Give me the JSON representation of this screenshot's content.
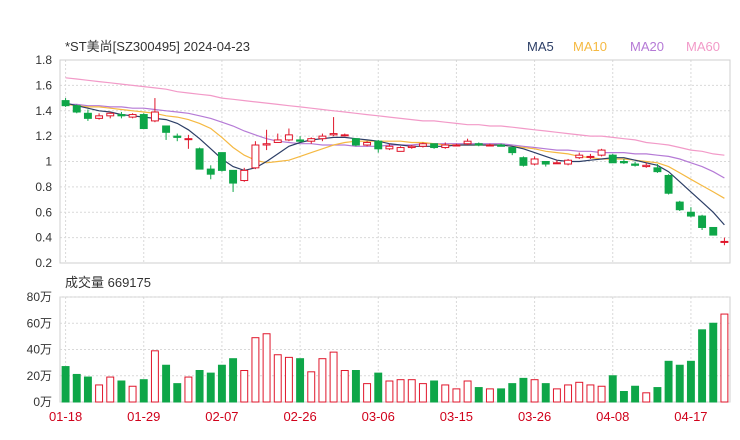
{
  "header": {
    "title": "*ST美尚[SZ300495] 2024-04-23",
    "volume_label": "成交量 669175"
  },
  "legend": [
    {
      "name": "MA5",
      "color": "#2c3e66"
    },
    {
      "name": "MA10",
      "color": "#f5b942"
    },
    {
      "name": "MA20",
      "color": "#b57ad6"
    },
    {
      "name": "MA60",
      "color": "#f29ac8"
    }
  ],
  "colors": {
    "up": "#e0162b",
    "down": "#0ea648",
    "grid": "#d9d9d9",
    "date": "#d0021b"
  },
  "chart_data": {
    "type": "candlestick",
    "title": "*ST美尚[SZ300495] 2024-04-23",
    "price_axis": {
      "ylim": [
        0.2,
        1.8
      ],
      "ticks": [
        "1.8",
        "1.6",
        "1.4",
        "1.2",
        "1",
        "0.8",
        "0.6",
        "0.4",
        "0.2"
      ]
    },
    "volume_axis": {
      "ylim": [
        0,
        80
      ],
      "unit": "万",
      "ticks": [
        "80万",
        "60万",
        "40万",
        "20万",
        "0万"
      ]
    },
    "date_ticks": [
      {
        "label": "01-18",
        "index": 0
      },
      {
        "label": "01-29",
        "index": 7
      },
      {
        "label": "02-07",
        "index": 14
      },
      {
        "label": "02-26",
        "index": 21
      },
      {
        "label": "03-06",
        "index": 28
      },
      {
        "label": "03-15",
        "index": 35
      },
      {
        "label": "03-26",
        "index": 42
      },
      {
        "label": "04-08",
        "index": 49
      },
      {
        "label": "04-17",
        "index": 56
      }
    ],
    "ohlc": [
      [
        1.48,
        1.5,
        1.43,
        1.44
      ],
      [
        1.44,
        1.45,
        1.38,
        1.39
      ],
      [
        1.38,
        1.41,
        1.32,
        1.34
      ],
      [
        1.34,
        1.38,
        1.33,
        1.36
      ],
      [
        1.36,
        1.39,
        1.34,
        1.38
      ],
      [
        1.37,
        1.39,
        1.34,
        1.36
      ],
      [
        1.35,
        1.38,
        1.34,
        1.37
      ],
      [
        1.37,
        1.38,
        1.26,
        1.26
      ],
      [
        1.32,
        1.5,
        1.31,
        1.39
      ],
      [
        1.28,
        1.28,
        1.17,
        1.23
      ],
      [
        1.2,
        1.22,
        1.16,
        1.19
      ],
      [
        1.18,
        1.21,
        1.1,
        1.18
      ],
      [
        1.1,
        1.11,
        0.94,
        0.94
      ],
      [
        0.94,
        0.97,
        0.86,
        0.9
      ],
      [
        1.07,
        1.07,
        0.92,
        0.93
      ],
      [
        0.93,
        0.93,
        0.76,
        0.83
      ],
      [
        0.85,
        0.95,
        0.84,
        0.93
      ],
      [
        0.95,
        1.16,
        0.94,
        1.13
      ],
      [
        1.13,
        1.25,
        1.09,
        1.14
      ],
      [
        1.15,
        1.22,
        1.15,
        1.17
      ],
      [
        1.17,
        1.26,
        1.16,
        1.21
      ],
      [
        1.17,
        1.2,
        1.15,
        1.16
      ],
      [
        1.16,
        1.19,
        1.14,
        1.18
      ],
      [
        1.18,
        1.22,
        1.16,
        1.2
      ],
      [
        1.21,
        1.35,
        1.2,
        1.22
      ],
      [
        1.21,
        1.22,
        1.2,
        1.21
      ],
      [
        1.18,
        1.18,
        1.12,
        1.13
      ],
      [
        1.13,
        1.16,
        1.12,
        1.15
      ],
      [
        1.16,
        1.17,
        1.07,
        1.1
      ],
      [
        1.1,
        1.14,
        1.09,
        1.12
      ],
      [
        1.08,
        1.12,
        1.08,
        1.11
      ],
      [
        1.11,
        1.13,
        1.1,
        1.12
      ],
      [
        1.12,
        1.15,
        1.11,
        1.14
      ],
      [
        1.14,
        1.14,
        1.1,
        1.11
      ],
      [
        1.11,
        1.15,
        1.1,
        1.13
      ],
      [
        1.13,
        1.14,
        1.12,
        1.13
      ],
      [
        1.14,
        1.18,
        1.13,
        1.16
      ],
      [
        1.14,
        1.15,
        1.12,
        1.13
      ],
      [
        1.13,
        1.14,
        1.12,
        1.13
      ],
      [
        1.13,
        1.14,
        1.12,
        1.12
      ],
      [
        1.11,
        1.11,
        1.05,
        1.07
      ],
      [
        1.03,
        1.04,
        0.96,
        0.97
      ],
      [
        0.98,
        1.04,
        0.97,
        1.02
      ],
      [
        1.0,
        1.0,
        0.96,
        0.98
      ],
      [
        0.99,
        1.01,
        0.98,
        0.99
      ],
      [
        0.98,
        1.02,
        0.97,
        1.01
      ],
      [
        1.03,
        1.07,
        1.02,
        1.05
      ],
      [
        1.04,
        1.06,
        1.02,
        1.04
      ],
      [
        1.05,
        1.1,
        1.04,
        1.09
      ],
      [
        1.05,
        1.06,
        0.99,
        0.99
      ],
      [
        1.0,
        1.02,
        0.98,
        0.99
      ],
      [
        0.98,
        1.0,
        0.96,
        0.97
      ],
      [
        0.96,
        0.99,
        0.95,
        0.97
      ],
      [
        0.95,
        0.98,
        0.91,
        0.92
      ],
      [
        0.89,
        0.9,
        0.74,
        0.75
      ],
      [
        0.68,
        0.69,
        0.61,
        0.62
      ],
      [
        0.6,
        0.64,
        0.56,
        0.57
      ],
      [
        0.57,
        0.58,
        0.46,
        0.48
      ],
      [
        0.48,
        0.48,
        0.42,
        0.42
      ],
      [
        0.37,
        0.4,
        0.34,
        0.37
      ]
    ],
    "ma5": [
      1.46,
      1.44,
      1.42,
      1.4,
      1.39,
      1.37,
      1.36,
      1.35,
      1.34,
      1.33,
      1.3,
      1.25,
      1.18,
      1.1,
      1.02,
      0.96,
      0.93,
      0.95,
      1.0,
      1.06,
      1.12,
      1.15,
      1.17,
      1.18,
      1.19,
      1.19,
      1.18,
      1.17,
      1.16,
      1.14,
      1.13,
      1.12,
      1.12,
      1.12,
      1.12,
      1.13,
      1.13,
      1.13,
      1.13,
      1.13,
      1.12,
      1.1,
      1.07,
      1.04,
      1.01,
      1.0,
      1.0,
      1.01,
      1.02,
      1.03,
      1.03,
      1.01,
      0.99,
      0.97,
      0.92,
      0.84,
      0.76,
      0.68,
      0.6,
      0.5
    ],
    "ma10": [
      1.45,
      1.44,
      1.43,
      1.43,
      1.42,
      1.41,
      1.4,
      1.39,
      1.38,
      1.36,
      1.35,
      1.33,
      1.3,
      1.26,
      1.19,
      1.11,
      1.05,
      1.01,
      0.99,
      1.0,
      1.01,
      1.04,
      1.07,
      1.1,
      1.13,
      1.15,
      1.16,
      1.16,
      1.16,
      1.16,
      1.16,
      1.15,
      1.15,
      1.14,
      1.13,
      1.13,
      1.13,
      1.13,
      1.13,
      1.13,
      1.12,
      1.11,
      1.1,
      1.08,
      1.07,
      1.06,
      1.04,
      1.03,
      1.02,
      1.02,
      1.02,
      1.01,
      1.0,
      0.99,
      0.96,
      0.91,
      0.86,
      0.81,
      0.76,
      0.71
    ],
    "ma20": [
      1.45,
      1.45,
      1.44,
      1.44,
      1.43,
      1.43,
      1.42,
      1.42,
      1.41,
      1.4,
      1.39,
      1.38,
      1.36,
      1.34,
      1.31,
      1.28,
      1.24,
      1.21,
      1.18,
      1.16,
      1.15,
      1.14,
      1.14,
      1.13,
      1.13,
      1.13,
      1.12,
      1.12,
      1.12,
      1.13,
      1.13,
      1.13,
      1.14,
      1.14,
      1.14,
      1.14,
      1.14,
      1.14,
      1.14,
      1.14,
      1.13,
      1.12,
      1.11,
      1.1,
      1.09,
      1.09,
      1.08,
      1.08,
      1.07,
      1.07,
      1.07,
      1.06,
      1.06,
      1.05,
      1.04,
      1.02,
      0.99,
      0.96,
      0.92,
      0.87
    ],
    "ma60": [
      1.66,
      1.65,
      1.64,
      1.63,
      1.62,
      1.61,
      1.6,
      1.59,
      1.58,
      1.57,
      1.55,
      1.54,
      1.53,
      1.52,
      1.5,
      1.49,
      1.48,
      1.47,
      1.46,
      1.45,
      1.44,
      1.43,
      1.42,
      1.41,
      1.4,
      1.39,
      1.38,
      1.37,
      1.36,
      1.35,
      1.34,
      1.33,
      1.32,
      1.32,
      1.31,
      1.3,
      1.29,
      1.29,
      1.28,
      1.28,
      1.27,
      1.26,
      1.25,
      1.24,
      1.23,
      1.22,
      1.21,
      1.2,
      1.2,
      1.19,
      1.18,
      1.17,
      1.15,
      1.14,
      1.13,
      1.11,
      1.09,
      1.08,
      1.06,
      1.05
    ],
    "volume": [
      27,
      21,
      19,
      13,
      19,
      16,
      12,
      17,
      39,
      28,
      14,
      19,
      24,
      22,
      28,
      33,
      24,
      49,
      52,
      36,
      34,
      33,
      23,
      33,
      38,
      24,
      24,
      14,
      22,
      16,
      17,
      17,
      14,
      16,
      13,
      10,
      16,
      11,
      10,
      10,
      14,
      18,
      17,
      14,
      10,
      13,
      15,
      13,
      12,
      20,
      8,
      12,
      7,
      11,
      31,
      28,
      31,
      55,
      60,
      67
    ]
  }
}
